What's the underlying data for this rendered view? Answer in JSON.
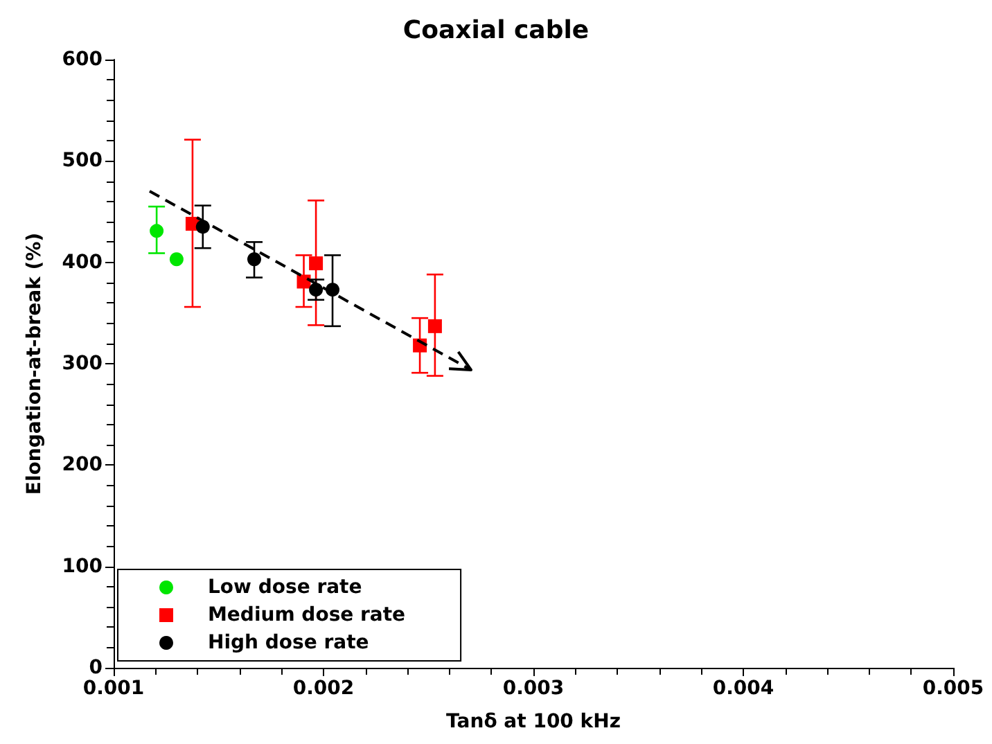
{
  "chart_data": {
    "type": "scatter",
    "title": "Coaxial cable",
    "xlabel": "Tanδ at 100 kHz",
    "ylabel": "Elongation-at-break (%)",
    "xlim": [
      0.001,
      0.005
    ],
    "xticks": [
      0.001,
      0.002,
      0.003,
      0.004,
      0.005
    ],
    "ylim": [
      0,
      600
    ],
    "yticks": [
      0,
      100,
      200,
      300,
      400,
      500,
      600
    ],
    "grid": false,
    "legend": "bottom left",
    "series": [
      {
        "name": "Low dose rate",
        "color": "#00e600",
        "marker": "circle",
        "x": [
          0.001205,
          0.0013
        ],
        "values": [
          431,
          403
        ],
        "errors": [
          [
            409,
            455
          ],
          null
        ]
      },
      {
        "name": "Medium dose rate",
        "color": "#ff0000",
        "marker": "square",
        "x": [
          0.001376,
          0.001906,
          0.001964,
          0.002459,
          0.002531
        ],
        "values": [
          438,
          381,
          399,
          318,
          337
        ],
        "errors": [
          [
            356,
            521
          ],
          [
            356,
            407
          ],
          [
            338,
            461
          ],
          [
            291,
            345
          ],
          [
            288,
            388
          ]
        ]
      },
      {
        "name": "High dose rate",
        "color": "#000000",
        "marker": "circle",
        "x": [
          0.001425,
          0.00167,
          0.001964,
          0.002043
        ],
        "values": [
          435,
          403,
          373,
          373
        ],
        "errors": [
          [
            414,
            456
          ],
          [
            385,
            420
          ],
          [
            363,
            383
          ],
          [
            337,
            407
          ]
        ]
      }
    ]
  }
}
